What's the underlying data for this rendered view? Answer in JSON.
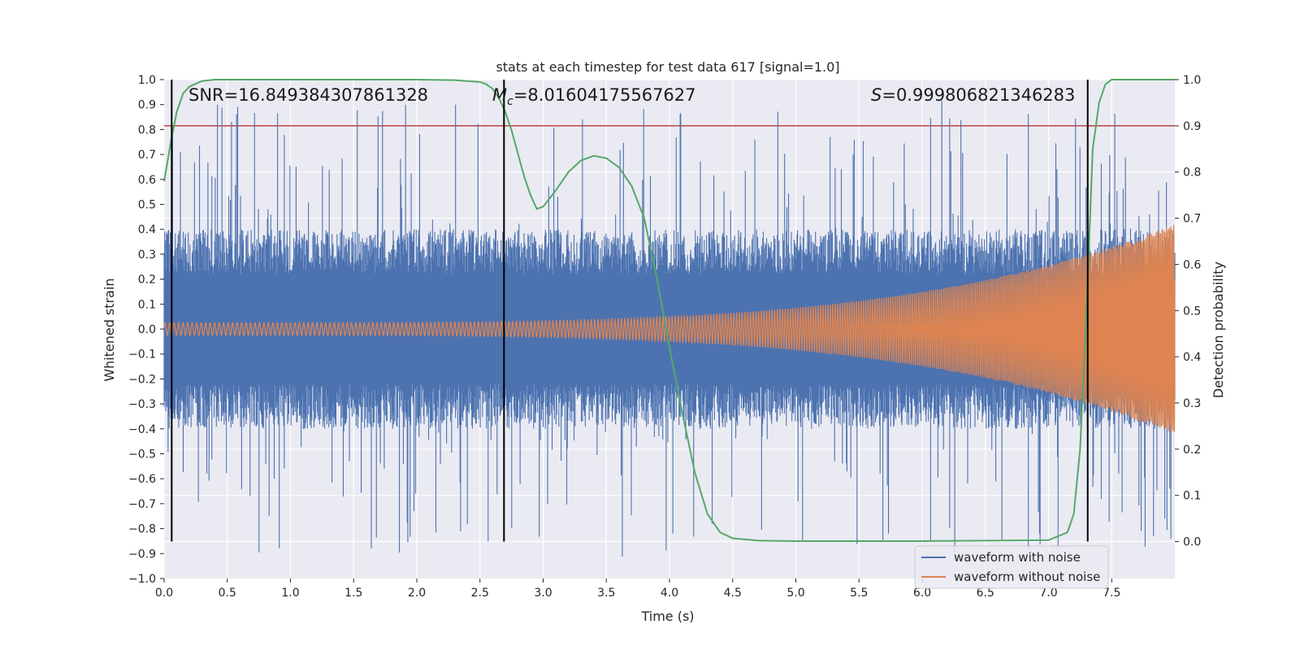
{
  "chart_data": {
    "type": "line",
    "title": "stats at each timestep for test data 617 [signal=1.0]",
    "xlabel": "Time (s)",
    "ylabel_left": "Whitened strain",
    "ylabel_right": "Detection probability",
    "xlim": [
      0.0,
      8.0
    ],
    "ylim_left": [
      -1.0,
      1.0
    ],
    "ylim_right": [
      -0.08,
      1.0
    ],
    "x_ticks": [
      "0.0",
      "0.5",
      "1.0",
      "1.5",
      "2.0",
      "2.5",
      "3.0",
      "3.5",
      "4.0",
      "4.5",
      "5.0",
      "5.5",
      "6.0",
      "6.5",
      "7.0",
      "7.5"
    ],
    "y_left_ticks": [
      "-1.0",
      "-0.9",
      "-0.8",
      "-0.7",
      "-0.6",
      "-0.5",
      "-0.4",
      "-0.3",
      "-0.2",
      "-0.1",
      "0.0",
      "0.1",
      "0.2",
      "0.3",
      "0.4",
      "0.5",
      "0.6",
      "0.7",
      "0.8",
      "0.9",
      "1.0"
    ],
    "y_right_ticks": [
      "0.0",
      "0.1",
      "0.2",
      "0.3",
      "0.4",
      "0.5",
      "0.6",
      "0.7",
      "0.8",
      "0.9",
      "1.0"
    ],
    "grid": true,
    "legend_position": "lower-right",
    "annotations": {
      "snr": "SNR=16.849384307861328",
      "mc_symbol": "M",
      "mc_sub": "c",
      "mc_value": "=8.01604175567627",
      "s_symbol": "S",
      "s_value": "=0.999806821346283"
    },
    "threshold": {
      "value": 0.9,
      "axis": "right",
      "color": "#c44e52"
    },
    "vertical_markers": [
      0.06,
      2.69,
      7.31
    ],
    "series": [
      {
        "name": "waveform with noise",
        "color": "#4c72b0",
        "envelope_typical": 0.4,
        "max_peak": 0.92,
        "min_peak": -0.92
      },
      {
        "name": "waveform without noise",
        "color": "#dd8452",
        "amplitude_start": 0.025,
        "amplitude_end": 0.42,
        "t_start": 0.0,
        "t_end": 8.0
      },
      {
        "name": "Detection probability",
        "color": "#55a868",
        "x": [
          0.0,
          0.05,
          0.1,
          0.15,
          0.2,
          0.3,
          0.4,
          0.6,
          1.0,
          1.5,
          2.0,
          2.3,
          2.5,
          2.55,
          2.6,
          2.65,
          2.7,
          2.75,
          2.8,
          2.85,
          2.9,
          2.95,
          3.0,
          3.1,
          3.2,
          3.3,
          3.4,
          3.5,
          3.6,
          3.7,
          3.8,
          3.9,
          4.0,
          4.1,
          4.2,
          4.3,
          4.4,
          4.5,
          4.7,
          5.0,
          6.0,
          7.0,
          7.15,
          7.2,
          7.25,
          7.3,
          7.35,
          7.4,
          7.45,
          7.5,
          7.6,
          8.0
        ],
        "values": [
          0.78,
          0.86,
          0.93,
          0.97,
          0.985,
          0.997,
          1.0,
          1.0,
          1.0,
          1.0,
          1.0,
          0.999,
          0.995,
          0.99,
          0.98,
          0.96,
          0.93,
          0.89,
          0.84,
          0.79,
          0.75,
          0.72,
          0.725,
          0.76,
          0.8,
          0.825,
          0.835,
          0.83,
          0.81,
          0.77,
          0.7,
          0.57,
          0.42,
          0.28,
          0.15,
          0.06,
          0.02,
          0.007,
          0.002,
          0.001,
          0.001,
          0.003,
          0.02,
          0.06,
          0.2,
          0.5,
          0.85,
          0.95,
          0.99,
          1.0,
          1.0,
          1.0
        ]
      }
    ]
  }
}
